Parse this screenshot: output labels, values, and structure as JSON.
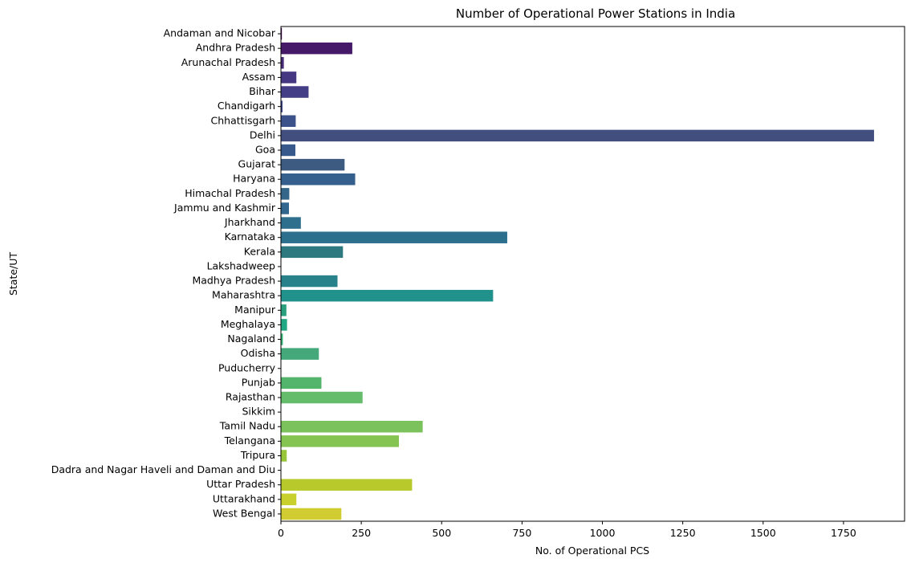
{
  "chart_data": {
    "type": "bar",
    "orientation": "horizontal",
    "title": "Number of Operational Power Stations in India",
    "xlabel": "No. of Operational PCS",
    "ylabel": "State/UT",
    "xlim": [
      0,
      1940
    ],
    "xticks": [
      0,
      250,
      500,
      750,
      1000,
      1250,
      1500,
      1750
    ],
    "colormap": "viridis",
    "categories": [
      "Andaman and Nicobar",
      "Andhra Pradesh",
      "Arunachal Pradesh",
      "Assam",
      "Bihar",
      "Chandigarh",
      "Chhattisgarh",
      "Delhi",
      "Goa",
      "Gujarat",
      "Haryana",
      "Himachal Pradesh",
      "Jammu and Kashmir",
      "Jharkhand",
      "Karnataka",
      "Kerala",
      "Lakshadweep",
      "Madhya Pradesh",
      "Maharashtra",
      "Manipur",
      "Meghalaya",
      "Nagaland",
      "Odisha",
      "Puducherry",
      "Punjab",
      "Rajasthan",
      "Sikkim",
      "Tamil Nadu",
      "Telangana",
      "Tripura",
      "Dadra and Nagar Haveli and Daman and Diu",
      "Uttar Pradesh",
      "Uttarakhand",
      "West Bengal"
    ],
    "values": [
      3,
      222,
      9,
      48,
      86,
      5,
      46,
      1845,
      45,
      198,
      231,
      26,
      25,
      62,
      704,
      193,
      0,
      176,
      660,
      17,
      19,
      6,
      118,
      0,
      126,
      254,
      0,
      441,
      367,
      18,
      0,
      408,
      48,
      188
    ],
    "colors": [
      "#440154",
      "#461868",
      "#472a7a",
      "#453781",
      "#433e85",
      "#3f4788",
      "#3b528b",
      "#424f7e",
      "#38598c",
      "#3d5a80",
      "#355f8d",
      "#34668a",
      "#31668e",
      "#2f6f8e",
      "#2d708e",
      "#2e7980",
      "#277f8e",
      "#26818a",
      "#21918c",
      "#28a07e",
      "#22a785",
      "#35b779",
      "#44a87a",
      "#52c569",
      "#53b56c",
      "#65bc6a",
      "#6ece58",
      "#7cc25c",
      "#86c451",
      "#98c63a",
      "#b5de2b",
      "#b8c92c",
      "#c7d02c",
      "#d1cc32"
    ]
  }
}
